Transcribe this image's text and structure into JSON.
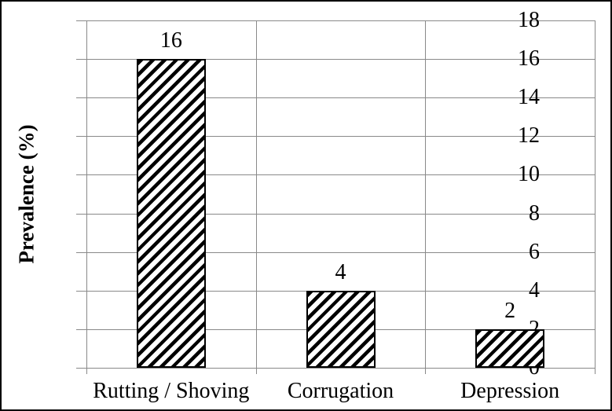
{
  "chart_data": {
    "type": "bar",
    "title": "",
    "categories": [
      "Rutting / Shoving",
      "Corrugation",
      "Depression"
    ],
    "values": [
      16,
      4,
      2
    ],
    "data_labels": [
      "16",
      "4",
      "2"
    ],
    "xlabel": "",
    "ylabel": "Prevalence (%)",
    "ylim": [
      0,
      18
    ],
    "yticks": [
      0,
      2,
      4,
      6,
      8,
      10,
      12,
      14,
      16,
      18
    ],
    "grid": "horizontal and vertical major gridlines",
    "legend_position": "none",
    "bar_style": "white fill with black 45-degree diagonal hatch and black border",
    "colors": {
      "gridline": "#898989",
      "axis": "#898989",
      "bar_border": "#000000",
      "hatch": "#000000",
      "background": "#FFFFFF",
      "frame_border": "#000000",
      "text": "#000000"
    }
  }
}
